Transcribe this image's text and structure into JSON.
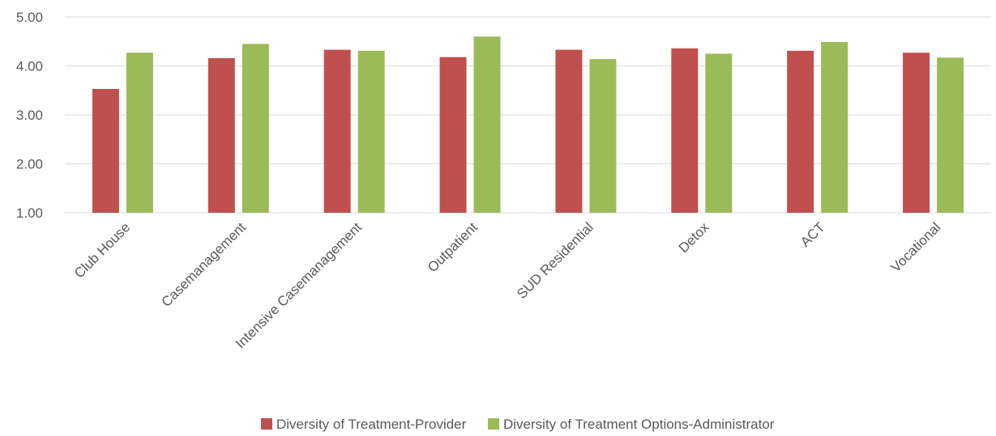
{
  "chart_data": {
    "type": "bar",
    "categories": [
      "Club House",
      "Casemanagement",
      "Intensive Casemanagement",
      "Outpatient",
      "SUD Residential",
      "Detox",
      "ACT",
      "Vocational"
    ],
    "series": [
      {
        "name": "Diversity of Treatment-Provider",
        "color": "#c0504d",
        "values": [
          3.53,
          4.16,
          4.33,
          4.18,
          4.33,
          4.36,
          4.31,
          4.27
        ]
      },
      {
        "name": "Diversity of Treatment Options-Administrator",
        "color": "#9bbb59",
        "values": [
          4.27,
          4.45,
          4.31,
          4.6,
          4.14,
          4.25,
          4.49,
          4.17
        ]
      }
    ],
    "yticks": [
      "1.00",
      "2.00",
      "3.00",
      "4.00",
      "5.00"
    ],
    "ylim": [
      1,
      5
    ],
    "grid": true,
    "legend_position": "bottom"
  }
}
